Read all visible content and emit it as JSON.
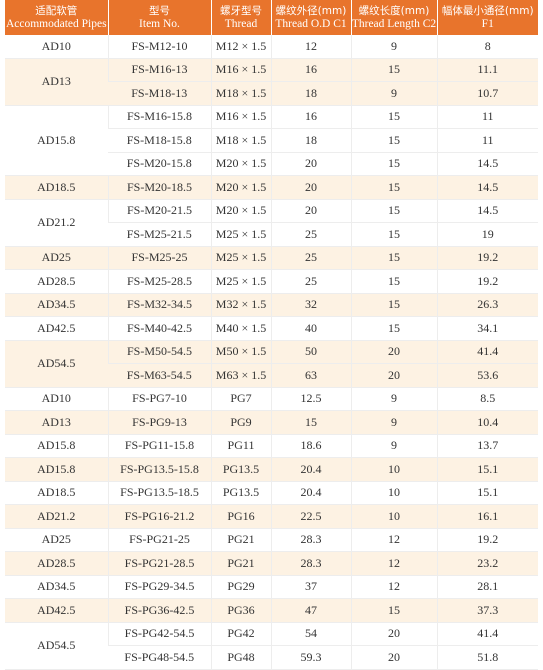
{
  "headers": [
    {
      "zh": "适配软管",
      "en": "Accommodated Pipes"
    },
    {
      "zh": "型号",
      "en": "Item No."
    },
    {
      "zh": "螺牙型号",
      "en": "Thread"
    },
    {
      "zh": "螺纹外径(mm)",
      "en": "Thread O.D C1"
    },
    {
      "zh": "螺纹长度(mm)",
      "en": "Thread Length C2"
    },
    {
      "zh": "幅体最小通径(mm)",
      "en": "F1"
    }
  ],
  "groups": [
    {
      "pipe": "AD10",
      "shaded": false,
      "rows": [
        [
          "FS-M12-10",
          "M12 × 1.5",
          "12",
          "9",
          "8"
        ]
      ]
    },
    {
      "pipe": "AD13",
      "shaded": true,
      "rows": [
        [
          "FS-M16-13",
          "M16 × 1.5",
          "16",
          "15",
          "11.1"
        ],
        [
          "FS-M18-13",
          "M18 × 1.5",
          "18",
          "9",
          "10.7"
        ]
      ]
    },
    {
      "pipe": "AD15.8",
      "shaded": false,
      "rows": [
        [
          "FS-M16-15.8",
          "M16 × 1.5",
          "16",
          "15",
          "11"
        ],
        [
          "FS-M18-15.8",
          "M18 × 1.5",
          "18",
          "15",
          "11"
        ],
        [
          "FS-M20-15.8",
          "M20 × 1.5",
          "20",
          "15",
          "14.5"
        ]
      ]
    },
    {
      "pipe": "AD18.5",
      "shaded": true,
      "rows": [
        [
          "FS-M20-18.5",
          "M20 × 1.5",
          "20",
          "15",
          "14.5"
        ]
      ]
    },
    {
      "pipe": "AD21.2",
      "shaded": false,
      "rows": [
        [
          "FS-M20-21.5",
          "M20 × 1.5",
          "20",
          "15",
          "14.5"
        ],
        [
          "FS-M25-21.5",
          "M25 × 1.5",
          "25",
          "15",
          "19"
        ]
      ]
    },
    {
      "pipe": "AD25",
      "shaded": true,
      "rows": [
        [
          "FS-M25-25",
          "M25 × 1.5",
          "25",
          "15",
          "19.2"
        ]
      ]
    },
    {
      "pipe": "AD28.5",
      "shaded": false,
      "rows": [
        [
          "FS-M25-28.5",
          "M25 × 1.5",
          "25",
          "15",
          "19.2"
        ]
      ]
    },
    {
      "pipe": "AD34.5",
      "shaded": true,
      "rows": [
        [
          "FS-M32-34.5",
          "M32 × 1.5",
          "32",
          "15",
          "26.3"
        ]
      ]
    },
    {
      "pipe": "AD42.5",
      "shaded": false,
      "rows": [
        [
          "FS-M40-42.5",
          "M40 × 1.5",
          "40",
          "15",
          "34.1"
        ]
      ]
    },
    {
      "pipe": "AD54.5",
      "shaded": true,
      "rows": [
        [
          "FS-M50-54.5",
          "M50 × 1.5",
          "50",
          "20",
          "41.4"
        ],
        [
          "FS-M63-54.5",
          "M63 × 1.5",
          "63",
          "20",
          "53.6"
        ]
      ]
    },
    {
      "pipe": "AD10",
      "shaded": false,
      "rows": [
        [
          "FS-PG7-10",
          "PG7",
          "12.5",
          "9",
          "8.5"
        ]
      ]
    },
    {
      "pipe": "AD13",
      "shaded": true,
      "rows": [
        [
          "FS-PG9-13",
          "PG9",
          "15",
          "9",
          "10.4"
        ]
      ]
    },
    {
      "pipe": "AD15.8",
      "shaded": false,
      "rows": [
        [
          "FS-PG11-15.8",
          "PG11",
          "18.6",
          "9",
          "13.7"
        ]
      ]
    },
    {
      "pipe": "AD15.8",
      "shaded": true,
      "rows": [
        [
          "FS-PG13.5-15.8",
          "PG13.5",
          "20.4",
          "10",
          "15.1"
        ]
      ]
    },
    {
      "pipe": "AD18.5",
      "shaded": false,
      "rows": [
        [
          "FS-PG13.5-18.5",
          "PG13.5",
          "20.4",
          "10",
          "15.1"
        ]
      ]
    },
    {
      "pipe": "AD21.2",
      "shaded": true,
      "rows": [
        [
          "FS-PG16-21.2",
          "PG16",
          "22.5",
          "10",
          "16.1"
        ]
      ]
    },
    {
      "pipe": "AD25",
      "shaded": false,
      "rows": [
        [
          "FS-PG21-25",
          "PG21",
          "28.3",
          "12",
          "19.2"
        ]
      ]
    },
    {
      "pipe": "AD28.5",
      "shaded": true,
      "rows": [
        [
          "FS-PG21-28.5",
          "PG21",
          "28.3",
          "12",
          "23.2"
        ]
      ]
    },
    {
      "pipe": "AD34.5",
      "shaded": false,
      "rows": [
        [
          "FS-PG29-34.5",
          "PG29",
          "37",
          "12",
          "28.1"
        ]
      ]
    },
    {
      "pipe": "AD42.5",
      "shaded": true,
      "rows": [
        [
          "FS-PG36-42.5",
          "PG36",
          "47",
          "15",
          "37.3"
        ]
      ]
    },
    {
      "pipe": "AD54.5",
      "shaded": false,
      "rows": [
        [
          "FS-PG42-54.5",
          "PG42",
          "54",
          "20",
          "41.4"
        ],
        [
          "FS-PG48-54.5",
          "PG48",
          "59.3",
          "20",
          "51.8"
        ]
      ]
    }
  ]
}
